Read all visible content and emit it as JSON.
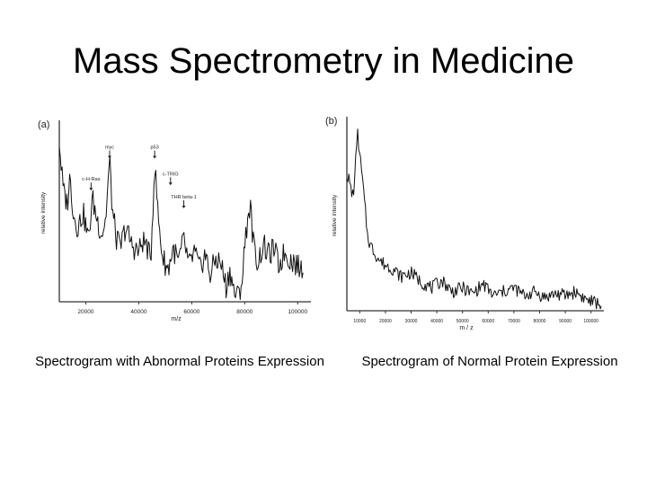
{
  "slide": {
    "title": "Mass Spectrometry in Medicine"
  },
  "captions": {
    "left": "Spectrogram with Abnormal Proteins Expression",
    "right": "Spectrogram of Normal Protein Expression"
  },
  "chart_data": [
    {
      "type": "line",
      "panel_label": "(a)",
      "xlabel": "m/z",
      "ylabel": "relative intensity",
      "xlim": [
        10000,
        105000
      ],
      "ylim": [
        0,
        100
      ],
      "x_ticks": [
        20000,
        40000,
        60000,
        80000,
        100000
      ],
      "x_tick_labels": [
        "20000",
        "40000",
        "60000",
        "80000",
        "100000"
      ],
      "annotations": [
        {
          "text": "c-H-Ras",
          "x": 22000,
          "y": 62
        },
        {
          "text": "myc",
          "x": 29000,
          "y": 80
        },
        {
          "text": "p53",
          "x": 46000,
          "y": 80
        },
        {
          "text": "c-TRIG",
          "x": 52000,
          "y": 65
        },
        {
          "text": "THR beta-1",
          "x": 57000,
          "y": 52
        }
      ],
      "series": [
        {
          "name": "abnormal",
          "x": [
            10000,
            11500,
            13000,
            14000,
            15500,
            17000,
            19000,
            21000,
            22500,
            24000,
            26000,
            27500,
            29000,
            30000,
            31500,
            33000,
            35000,
            37000,
            38500,
            40000,
            41500,
            43000,
            44500,
            46000,
            47500,
            49000,
            51000,
            53000,
            55000,
            57000,
            59000,
            61000,
            63000,
            65000,
            67000,
            69000,
            71000,
            73000,
            74500,
            76000,
            77500,
            79000,
            80500,
            82000,
            83500,
            85000,
            87000,
            89000,
            91000,
            93000,
            95000,
            97000,
            99000,
            101000,
            102000
          ],
          "y": [
            90,
            62,
            55,
            70,
            48,
            42,
            50,
            35,
            58,
            48,
            38,
            46,
            80,
            52,
            36,
            30,
            42,
            33,
            30,
            28,
            34,
            32,
            22,
            78,
            45,
            25,
            18,
            30,
            22,
            35,
            20,
            28,
            18,
            27,
            15,
            24,
            22,
            8,
            18,
            5,
            3,
            12,
            40,
            55,
            30,
            22,
            32,
            26,
            30,
            20,
            28,
            24,
            22,
            18,
            20
          ]
        }
      ]
    },
    {
      "type": "line",
      "panel_label": "(b)",
      "xlabel": "m / z",
      "ylabel": "relative intensity",
      "xlim": [
        5000,
        105000
      ],
      "ylim": [
        0,
        100
      ],
      "x_ticks": [
        10000,
        20000,
        30000,
        40000,
        50000,
        60000,
        70000,
        80000,
        90000,
        100000
      ],
      "x_tick_labels": [
        "10000",
        "20000",
        "30000",
        "40000",
        "50000",
        "60000",
        "70000",
        "80000",
        "90000",
        "100000"
      ],
      "series": [
        {
          "name": "normal",
          "x": [
            5000,
            6000,
            7000,
            8000,
            9000,
            10000,
            11000,
            12000,
            13000,
            14000,
            16000,
            18000,
            20000,
            23000,
            26000,
            30000,
            34000,
            38000,
            42000,
            46000,
            50000,
            54000,
            58000,
            62000,
            66000,
            70000,
            74000,
            78000,
            82000,
            86000,
            90000,
            94000,
            98000,
            102000,
            104000
          ],
          "y": [
            72,
            68,
            60,
            66,
            95,
            82,
            70,
            55,
            40,
            35,
            30,
            26,
            24,
            22,
            18,
            20,
            15,
            12,
            16,
            10,
            12,
            9,
            14,
            8,
            10,
            12,
            8,
            10,
            7,
            9,
            8,
            10,
            6,
            4,
            3
          ]
        }
      ]
    }
  ]
}
